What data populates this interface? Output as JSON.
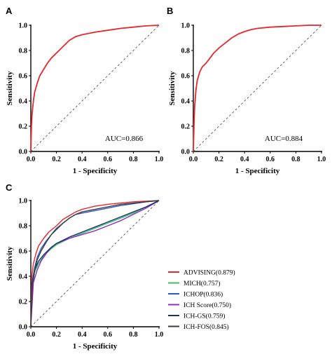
{
  "chart_data": [
    {
      "id": "A",
      "panel_label": "A",
      "type": "line",
      "xlabel": "1 - Specificity",
      "ylabel": "Sensitivity",
      "xlim": [
        0,
        1
      ],
      "ylim": [
        0,
        1
      ],
      "x_ticks": [
        "0.0",
        "0.2",
        "0.4",
        "0.6",
        "0.8",
        "1.0"
      ],
      "y_ticks": [
        "0.0",
        "0.2",
        "0.4",
        "0.6",
        "0.8",
        "1.0"
      ],
      "annotation": "AUC=0.866",
      "reference_line": "diagonal dashed",
      "series": [
        {
          "color": "#e8262b",
          "x": [
            0,
            0.005,
            0.01,
            0.02,
            0.03,
            0.05,
            0.07,
            0.1,
            0.13,
            0.16,
            0.2,
            0.25,
            0.3,
            0.35,
            0.4,
            0.5,
            0.6,
            0.7,
            0.8,
            0.9,
            1.0
          ],
          "y": [
            0,
            0.2,
            0.3,
            0.4,
            0.47,
            0.54,
            0.6,
            0.65,
            0.7,
            0.74,
            0.78,
            0.83,
            0.88,
            0.91,
            0.925,
            0.945,
            0.96,
            0.975,
            0.985,
            0.995,
            1.0
          ]
        }
      ]
    },
    {
      "id": "B",
      "panel_label": "B",
      "type": "line",
      "xlabel": "1 - Specificity",
      "ylabel": "Sensitivity",
      "xlim": [
        0,
        1
      ],
      "ylim": [
        0,
        1
      ],
      "x_ticks": [
        "0.0",
        "0.2",
        "0.4",
        "0.6",
        "0.8",
        "1.0"
      ],
      "y_ticks": [
        "0.0",
        "0.2",
        "0.4",
        "0.6",
        "0.8",
        "1.0"
      ],
      "annotation": "AUC=0.884",
      "reference_line": "diagonal dashed",
      "series": [
        {
          "color": "#e8262b",
          "x": [
            0,
            0.005,
            0.01,
            0.02,
            0.03,
            0.05,
            0.07,
            0.1,
            0.13,
            0.16,
            0.2,
            0.25,
            0.3,
            0.35,
            0.4,
            0.45,
            0.5,
            0.6,
            0.7,
            0.8,
            0.9,
            1.0
          ],
          "y": [
            0,
            0.2,
            0.35,
            0.48,
            0.56,
            0.63,
            0.67,
            0.7,
            0.74,
            0.78,
            0.82,
            0.86,
            0.9,
            0.93,
            0.95,
            0.965,
            0.975,
            0.985,
            0.99,
            0.995,
            1.0,
            1.0
          ]
        }
      ]
    },
    {
      "id": "C",
      "panel_label": "C",
      "type": "line",
      "xlabel": "1 - Specificity",
      "ylabel": "Sensitivity",
      "xlim": [
        0,
        1
      ],
      "ylim": [
        0,
        1
      ],
      "x_ticks": [
        "0.0",
        "0.2",
        "0.4",
        "0.6",
        "0.8",
        "1.0"
      ],
      "y_ticks": [
        "0.0",
        "0.2",
        "0.4",
        "0.6",
        "0.8",
        "1.0"
      ],
      "reference_line": "diagonal dashed",
      "legend_position": "right",
      "series": [
        {
          "name": "ADVISING(0.879)",
          "color": "#e8262b",
          "x": [
            0,
            0.005,
            0.01,
            0.02,
            0.04,
            0.06,
            0.1,
            0.14,
            0.2,
            0.25,
            0.3,
            0.35,
            0.4,
            0.5,
            0.6,
            0.7,
            0.8,
            0.9,
            1.0
          ],
          "y": [
            0,
            0.3,
            0.42,
            0.5,
            0.58,
            0.64,
            0.7,
            0.75,
            0.8,
            0.85,
            0.88,
            0.91,
            0.93,
            0.955,
            0.97,
            0.98,
            0.99,
            0.995,
            1.0
          ]
        },
        {
          "name": "MICH(0.757)",
          "color": "#3ec26a",
          "x": [
            0,
            0.01,
            0.03,
            0.06,
            0.1,
            0.15,
            0.2,
            0.3,
            0.4,
            0.5,
            0.6,
            0.7,
            0.8,
            0.9,
            1.0
          ],
          "y": [
            0,
            0.3,
            0.43,
            0.5,
            0.56,
            0.61,
            0.65,
            0.7,
            0.74,
            0.78,
            0.82,
            0.86,
            0.9,
            0.95,
            1.0
          ]
        },
        {
          "name": "ICHOP(0.836)",
          "color": "#2f57c8",
          "x": [
            0,
            0.01,
            0.03,
            0.05,
            0.08,
            0.12,
            0.16,
            0.2,
            0.25,
            0.3,
            0.35,
            0.4,
            0.5,
            0.6,
            0.7,
            0.8,
            0.9,
            1.0
          ],
          "y": [
            0,
            0.35,
            0.47,
            0.55,
            0.62,
            0.68,
            0.73,
            0.78,
            0.82,
            0.86,
            0.89,
            0.9,
            0.92,
            0.94,
            0.96,
            0.975,
            0.99,
            1.0
          ]
        },
        {
          "name": "ICH Score(0.750)",
          "color": "#8a2ec9",
          "x": [
            0,
            0.02,
            0.05,
            0.08,
            0.12,
            0.16,
            0.2,
            0.3,
            0.4,
            0.5,
            0.6,
            0.7,
            0.8,
            0.9,
            1.0
          ],
          "y": [
            0,
            0.35,
            0.45,
            0.52,
            0.58,
            0.63,
            0.66,
            0.7,
            0.73,
            0.76,
            0.8,
            0.84,
            0.89,
            0.94,
            1.0
          ]
        },
        {
          "name": "ICH-GS(0.759)",
          "color": "#1b2f6b",
          "x": [
            0,
            0.01,
            0.03,
            0.06,
            0.1,
            0.15,
            0.2,
            0.3,
            0.4,
            0.5,
            0.6,
            0.7,
            0.8,
            0.9,
            1.0
          ],
          "y": [
            0,
            0.33,
            0.45,
            0.52,
            0.57,
            0.62,
            0.66,
            0.71,
            0.75,
            0.79,
            0.83,
            0.87,
            0.91,
            0.95,
            1.0
          ]
        },
        {
          "name": "ICH-FOS(0.845)",
          "color": "#3a3a3a",
          "x": [
            0,
            0.01,
            0.03,
            0.05,
            0.08,
            0.12,
            0.16,
            0.2,
            0.25,
            0.3,
            0.35,
            0.4,
            0.5,
            0.6,
            0.7,
            0.8,
            0.9,
            1.0
          ],
          "y": [
            0,
            0.32,
            0.45,
            0.53,
            0.6,
            0.67,
            0.73,
            0.77,
            0.82,
            0.86,
            0.89,
            0.91,
            0.93,
            0.95,
            0.97,
            0.98,
            0.99,
            1.0
          ]
        }
      ]
    }
  ]
}
